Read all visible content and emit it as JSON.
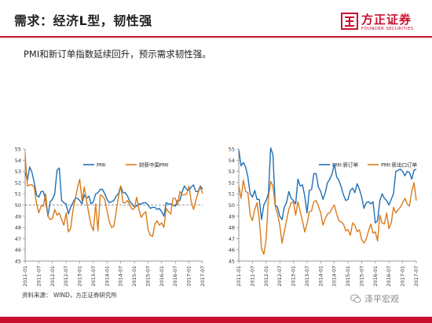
{
  "slide": {
    "title": "需求：经济L型，韧性强",
    "subtitle": "PMI和新订单指数延续回升，预示需求韧性强。",
    "source": "资料来源： WIND，方正证券研究所",
    "watermark": "泽平宏观",
    "logo_cn": "方正证券",
    "logo_en": "FOUNDER SECURITIES",
    "accent_color": "#c8102e",
    "icons": [
      "founder-logo-mark",
      "wechat-icon"
    ]
  },
  "chart_data": [
    {
      "type": "line",
      "ylim": [
        45,
        55
      ],
      "yticks": [
        "45",
        "46",
        "47",
        "48",
        "49",
        "50",
        "51",
        "52",
        "53",
        "54",
        "55"
      ],
      "xticks": [
        "2011-01",
        "2011-07",
        "2012-01",
        "2012-07",
        "2013-01",
        "2013-07",
        "2014-01",
        "2014-07",
        "2015-01",
        "2015-07",
        "2016-01",
        "2016-07",
        "2017-01",
        "2017-07"
      ],
      "reference_line": 50,
      "legend_position": "top",
      "series": [
        {
          "name": "PMI",
          "color": "#1f6fb5",
          "values": [
            52.9,
            52.2,
            53.4,
            52.9,
            52.0,
            50.9,
            50.7,
            51.2,
            51.2,
            50.4,
            49.0,
            50.3,
            50.5,
            51.0,
            53.1,
            53.3,
            50.4,
            50.2,
            50.1,
            49.2,
            49.8,
            50.2,
            50.6,
            50.6,
            50.4,
            50.1,
            50.9,
            50.6,
            50.8,
            50.1,
            50.3,
            51.0,
            51.1,
            51.4,
            51.4,
            51.0,
            50.5,
            50.2,
            50.3,
            50.4,
            50.8,
            51.0,
            51.7,
            51.1,
            51.1,
            50.8,
            50.3,
            50.1,
            49.8,
            49.9,
            50.1,
            50.1,
            50.2,
            50.2,
            50.0,
            49.7,
            49.8,
            49.8,
            49.6,
            49.7,
            49.4,
            49.0,
            50.2,
            50.1,
            50.1,
            50.0,
            49.9,
            50.4,
            50.4,
            51.2,
            51.7,
            51.4,
            51.3,
            51.6,
            51.8,
            51.2,
            51.2,
            51.7,
            51.4
          ]
        },
        {
          "name": "财新中国PMI",
          "color": "#d97b1a",
          "values": [
            54.5,
            51.7,
            51.8,
            51.8,
            51.6,
            50.1,
            49.3,
            49.9,
            49.9,
            51.0,
            49.0,
            48.7,
            48.8,
            49.6,
            49.1,
            49.3,
            48.7,
            48.2,
            49.3,
            47.6,
            47.9,
            49.5,
            50.5,
            51.5,
            52.3,
            50.4,
            51.6,
            50.4,
            49.2,
            48.2,
            47.7,
            50.1,
            47.7,
            50.9,
            50.8,
            50.5,
            49.5,
            48.5,
            48.0,
            48.1,
            49.4,
            50.7,
            51.7,
            50.2,
            50.2,
            50.4,
            50.0,
            49.6,
            49.7,
            50.7,
            49.6,
            48.9,
            49.2,
            49.4,
            47.8,
            47.3,
            47.2,
            48.3,
            48.6,
            48.2,
            48.4,
            48.0,
            49.7,
            49.4,
            49.2,
            50.6,
            50.6,
            50.0,
            51.2,
            50.9,
            50.9,
            51.0,
            51.7,
            50.3,
            49.6,
            50.4,
            51.1,
            51.6,
            51.0
          ]
        }
      ]
    },
    {
      "type": "line",
      "ylim": [
        45,
        55
      ],
      "yticks": [
        "45",
        "46",
        "47",
        "48",
        "49",
        "50",
        "51",
        "52",
        "53",
        "54",
        "55"
      ],
      "xticks": [
        "2011-01",
        "2011-07",
        "2012-01",
        "2012-07",
        "2013-01",
        "2013-07",
        "2014-01",
        "2014-07",
        "2015-01",
        "2015-07",
        "2016-01",
        "2016-07",
        "2017-01",
        "2017-07"
      ],
      "legend_position": "top",
      "series": [
        {
          "name": "PMI:新订单",
          "color": "#1f6fb5",
          "values": [
            54.9,
            53.5,
            53.8,
            53.4,
            52.5,
            51.0,
            50.7,
            51.3,
            50.5,
            50.5,
            48.7,
            50.0,
            50.4,
            51.0,
            55.1,
            54.5,
            50.0,
            49.8,
            49.0,
            48.7,
            49.8,
            50.2,
            51.2,
            50.6,
            50.4,
            50.1,
            52.3,
            51.7,
            51.8,
            50.8,
            49.3,
            51.3,
            51.4,
            52.8,
            52.8,
            51.6,
            51.2,
            50.5,
            51.1,
            52.0,
            52.3,
            52.8,
            53.6,
            52.5,
            52.2,
            51.6,
            50.9,
            50.4,
            50.5,
            51.3,
            51.5,
            51.1,
            51.9,
            51.4,
            50.7,
            49.7,
            50.2,
            50.3,
            50.1,
            50.3,
            48.4,
            48.6,
            50.4,
            51.0,
            50.6,
            50.4,
            50.0,
            50.5,
            51.0,
            53.0,
            53.1,
            53.2,
            53.0,
            52.6,
            53.0,
            52.9,
            52.3,
            53.1,
            53.2
          ]
        },
        {
          "name": "PMI:新出口订单",
          "color": "#d97b1a",
          "values": [
            51.7,
            50.6,
            52.2,
            51.2,
            51.1,
            49.1,
            48.6,
            49.6,
            50.2,
            48.7,
            46.1,
            45.6,
            46.9,
            50.6,
            52.1,
            51.7,
            49.9,
            49.2,
            48.2,
            46.6,
            47.6,
            48.6,
            49.6,
            50.2,
            50.3,
            49.1,
            50.3,
            49.4,
            48.6,
            47.6,
            48.3,
            49.4,
            49.5,
            50.3,
            50.4,
            49.9,
            49.3,
            48.2,
            48.8,
            49.2,
            49.3,
            49.7,
            50.0,
            49.2,
            48.6,
            48.5,
            48.3,
            47.7,
            47.8,
            47.3,
            48.4,
            48.2,
            47.6,
            47.8,
            46.9,
            46.6,
            47.0,
            47.7,
            48.3,
            47.5,
            47.6,
            46.8,
            49.1,
            48.4,
            48.3,
            49.3,
            47.9,
            48.4,
            49.8,
            49.3,
            49.6,
            49.8,
            50.2,
            50.6,
            50.1,
            49.9,
            51.2,
            52.0,
            50.4
          ]
        }
      ]
    }
  ]
}
